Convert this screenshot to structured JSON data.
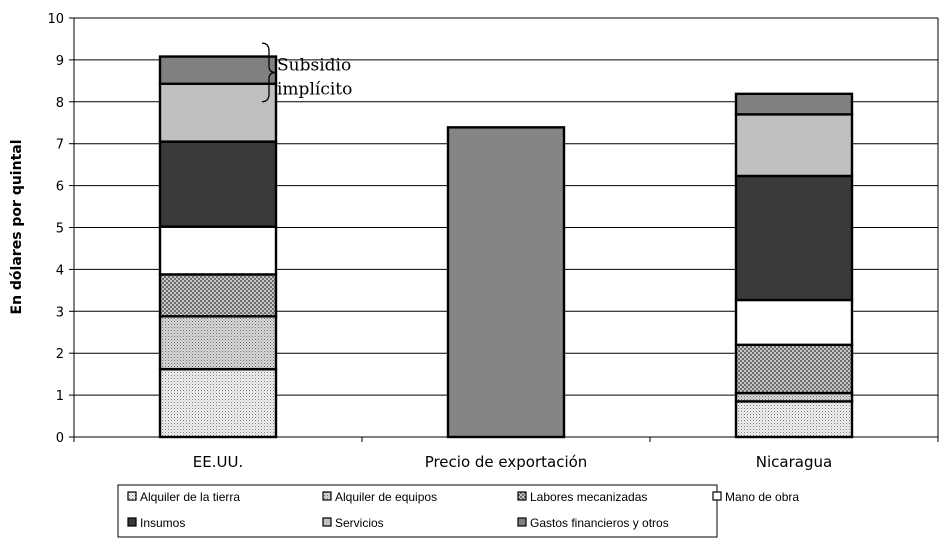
{
  "chart_data": {
    "type": "bar",
    "stacked": true,
    "ylabel": "En dólares por quintal",
    "ylim": [
      0,
      10
    ],
    "yticks": [
      0,
      1,
      2,
      3,
      4,
      5,
      6,
      7,
      8,
      9,
      10
    ],
    "grid": true,
    "categories": [
      "EE.UU.",
      "Precio de exportación",
      "Nicaragua"
    ],
    "series": [
      {
        "name": "Alquiler de la tierra",
        "color": "#e6e6e6",
        "pattern": "dots-light",
        "values": [
          1.62,
          0,
          0.85
        ]
      },
      {
        "name": "Alquiler de equipos",
        "color": "#cfcfcf",
        "pattern": "dots-medium",
        "values": [
          1.26,
          0,
          0.2
        ]
      },
      {
        "name": "Labores mecanizadas",
        "color": "#a4a4a4",
        "pattern": "checker",
        "values": [
          1.0,
          0,
          1.15
        ]
      },
      {
        "name": "Mano de obra",
        "color": "#ffffff",
        "pattern": "solid",
        "values": [
          1.14,
          0,
          1.07
        ]
      },
      {
        "name": "Insumos",
        "color": "#3a3a3a",
        "pattern": "solid",
        "values": [
          2.03,
          0,
          2.96
        ]
      },
      {
        "name": "Servicios",
        "color": "#c0c0c0",
        "pattern": "solid",
        "values": [
          1.38,
          0,
          1.47
        ]
      },
      {
        "name": "Gastos financieros y otros",
        "color": "#808080",
        "pattern": "solid",
        "values": [
          0.65,
          0,
          0.49
        ]
      },
      {
        "name": "",
        "color": "#858585",
        "pattern": "solid",
        "values": [
          0,
          7.39,
          0
        ]
      }
    ],
    "annotations": [
      {
        "text_lines": [
          "Subsidio",
          "implícito"
        ],
        "category": "EE.UU.",
        "y_range": [
          8.0,
          9.4
        ]
      }
    ],
    "legend": {
      "placement": "bottom",
      "entries": [
        "Alquiler de la tierra",
        "Alquiler de equipos",
        "Labores mecanizadas",
        "Mano de obra",
        "Insumos",
        "Servicios",
        "Gastos financieros y otros"
      ]
    }
  }
}
